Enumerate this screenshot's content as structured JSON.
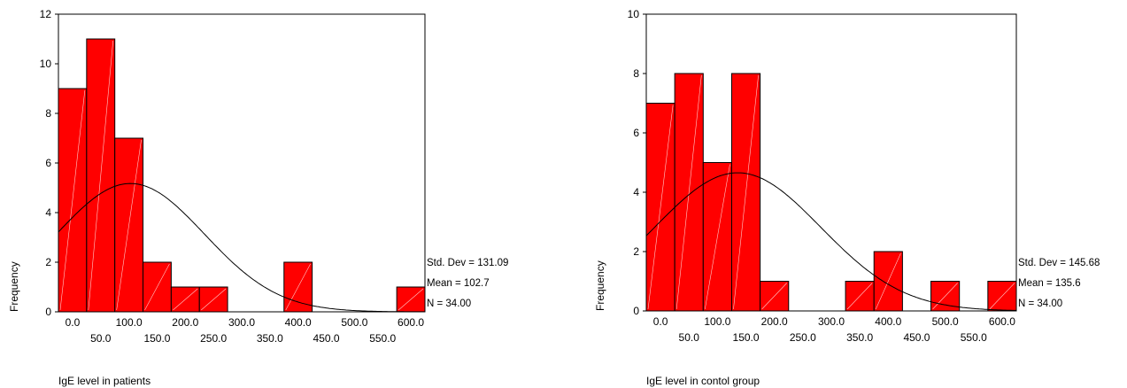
{
  "chart_data": [
    {
      "type": "bar",
      "xlabel": "IgE level in patients",
      "ylabel": "Frequency",
      "ylim": [
        0,
        12
      ],
      "yticks": [
        0,
        2,
        4,
        6,
        8,
        10,
        12
      ],
      "xlim": [
        -25,
        625
      ],
      "xticks_row1": [
        "0.0",
        "100.0",
        "200.0",
        "300.0",
        "400.0",
        "500.0",
        "600.0"
      ],
      "xticks_row2": [
        "50.0",
        "150.0",
        "250.0",
        "350.0",
        "450.0",
        "550.0"
      ],
      "bin_centers": [
        0,
        50,
        100,
        150,
        200,
        250,
        300,
        350,
        400,
        450,
        500,
        550,
        600
      ],
      "values": [
        9,
        11,
        7,
        2,
        1,
        1,
        0,
        0,
        2,
        0,
        0,
        0,
        1
      ],
      "normal_curve": {
        "mean": 102.7,
        "std": 131.09,
        "n": 34,
        "bin_width": 50
      },
      "stats": [
        "Std. Dev = 131.09",
        "Mean = 102.7",
        "N = 34.00"
      ],
      "bar_color": "#ff0000",
      "grid": false
    },
    {
      "type": "bar",
      "xlabel": "IgE level in contol group",
      "ylabel": "Frequency",
      "ylim": [
        0,
        10
      ],
      "yticks": [
        0,
        2,
        4,
        6,
        8,
        10
      ],
      "xlim": [
        -25,
        625
      ],
      "xticks_row1": [
        "0.0",
        "100.0",
        "200.0",
        "300.0",
        "400.0",
        "500.0",
        "600.0"
      ],
      "xticks_row2": [
        "50.0",
        "150.0",
        "250.0",
        "350.0",
        "450.0",
        "550.0"
      ],
      "bin_centers": [
        0,
        50,
        100,
        150,
        200,
        250,
        300,
        350,
        400,
        450,
        500,
        550,
        600
      ],
      "values": [
        7,
        8,
        5,
        8,
        1,
        0,
        0,
        1,
        2,
        0,
        1,
        0,
        1
      ],
      "normal_curve": {
        "mean": 135.6,
        "std": 145.68,
        "n": 34,
        "bin_width": 50
      },
      "stats": [
        "Std. Dev = 145.68",
        "Mean = 135.6",
        "N = 34.00"
      ],
      "bar_color": "#ff0000",
      "grid": false
    }
  ]
}
